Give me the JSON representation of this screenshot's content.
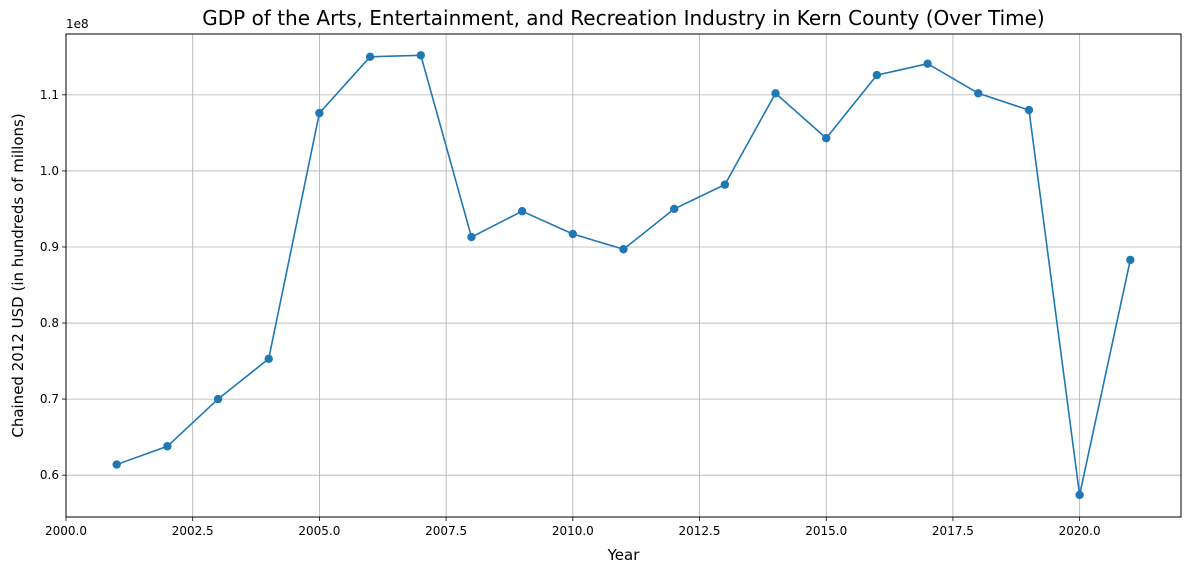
{
  "chart_data": {
    "type": "line",
    "title": "GDP of the Arts, Entertainment, and Recreation Industry in Kern County (Over Time)",
    "xlabel": "Year",
    "ylabel": "Chained 2012 USD (in hundreds of millons)",
    "y_offset_label": "1e8",
    "xlim": [
      2000.0,
      2022.0
    ],
    "ylim": [
      54500000,
      118000000
    ],
    "x_ticks": [
      2000.0,
      2002.5,
      2005.0,
      2007.5,
      2010.0,
      2012.5,
      2015.0,
      2017.5,
      2020.0
    ],
    "x_tick_labels": [
      "2000.0",
      "2002.5",
      "2005.0",
      "2007.5",
      "2010.0",
      "2012.5",
      "2015.0",
      "2017.5",
      "2020.0"
    ],
    "y_ticks": [
      60000000,
      70000000,
      80000000,
      90000000,
      100000000,
      110000000
    ],
    "y_tick_labels": [
      "0.6",
      "0.7",
      "0.8",
      "0.9",
      "1.0",
      "1.1"
    ],
    "grid": true,
    "color": "#1f77b4",
    "series": [
      {
        "x": [
          2001,
          2002,
          2003,
          2004,
          2005,
          2006,
          2007,
          2008,
          2009,
          2010,
          2011,
          2012,
          2013,
          2014,
          2015,
          2016,
          2017,
          2018,
          2019,
          2020,
          2021
        ],
        "values": [
          61400000,
          63800000,
          70000000,
          75300000,
          107600000,
          115000000,
          115200000,
          91300000,
          94700000,
          91700000,
          89700000,
          95000000,
          98200000,
          110200000,
          104300000,
          112600000,
          114100000,
          110200000,
          108000000,
          57400000,
          88300000
        ]
      }
    ]
  }
}
